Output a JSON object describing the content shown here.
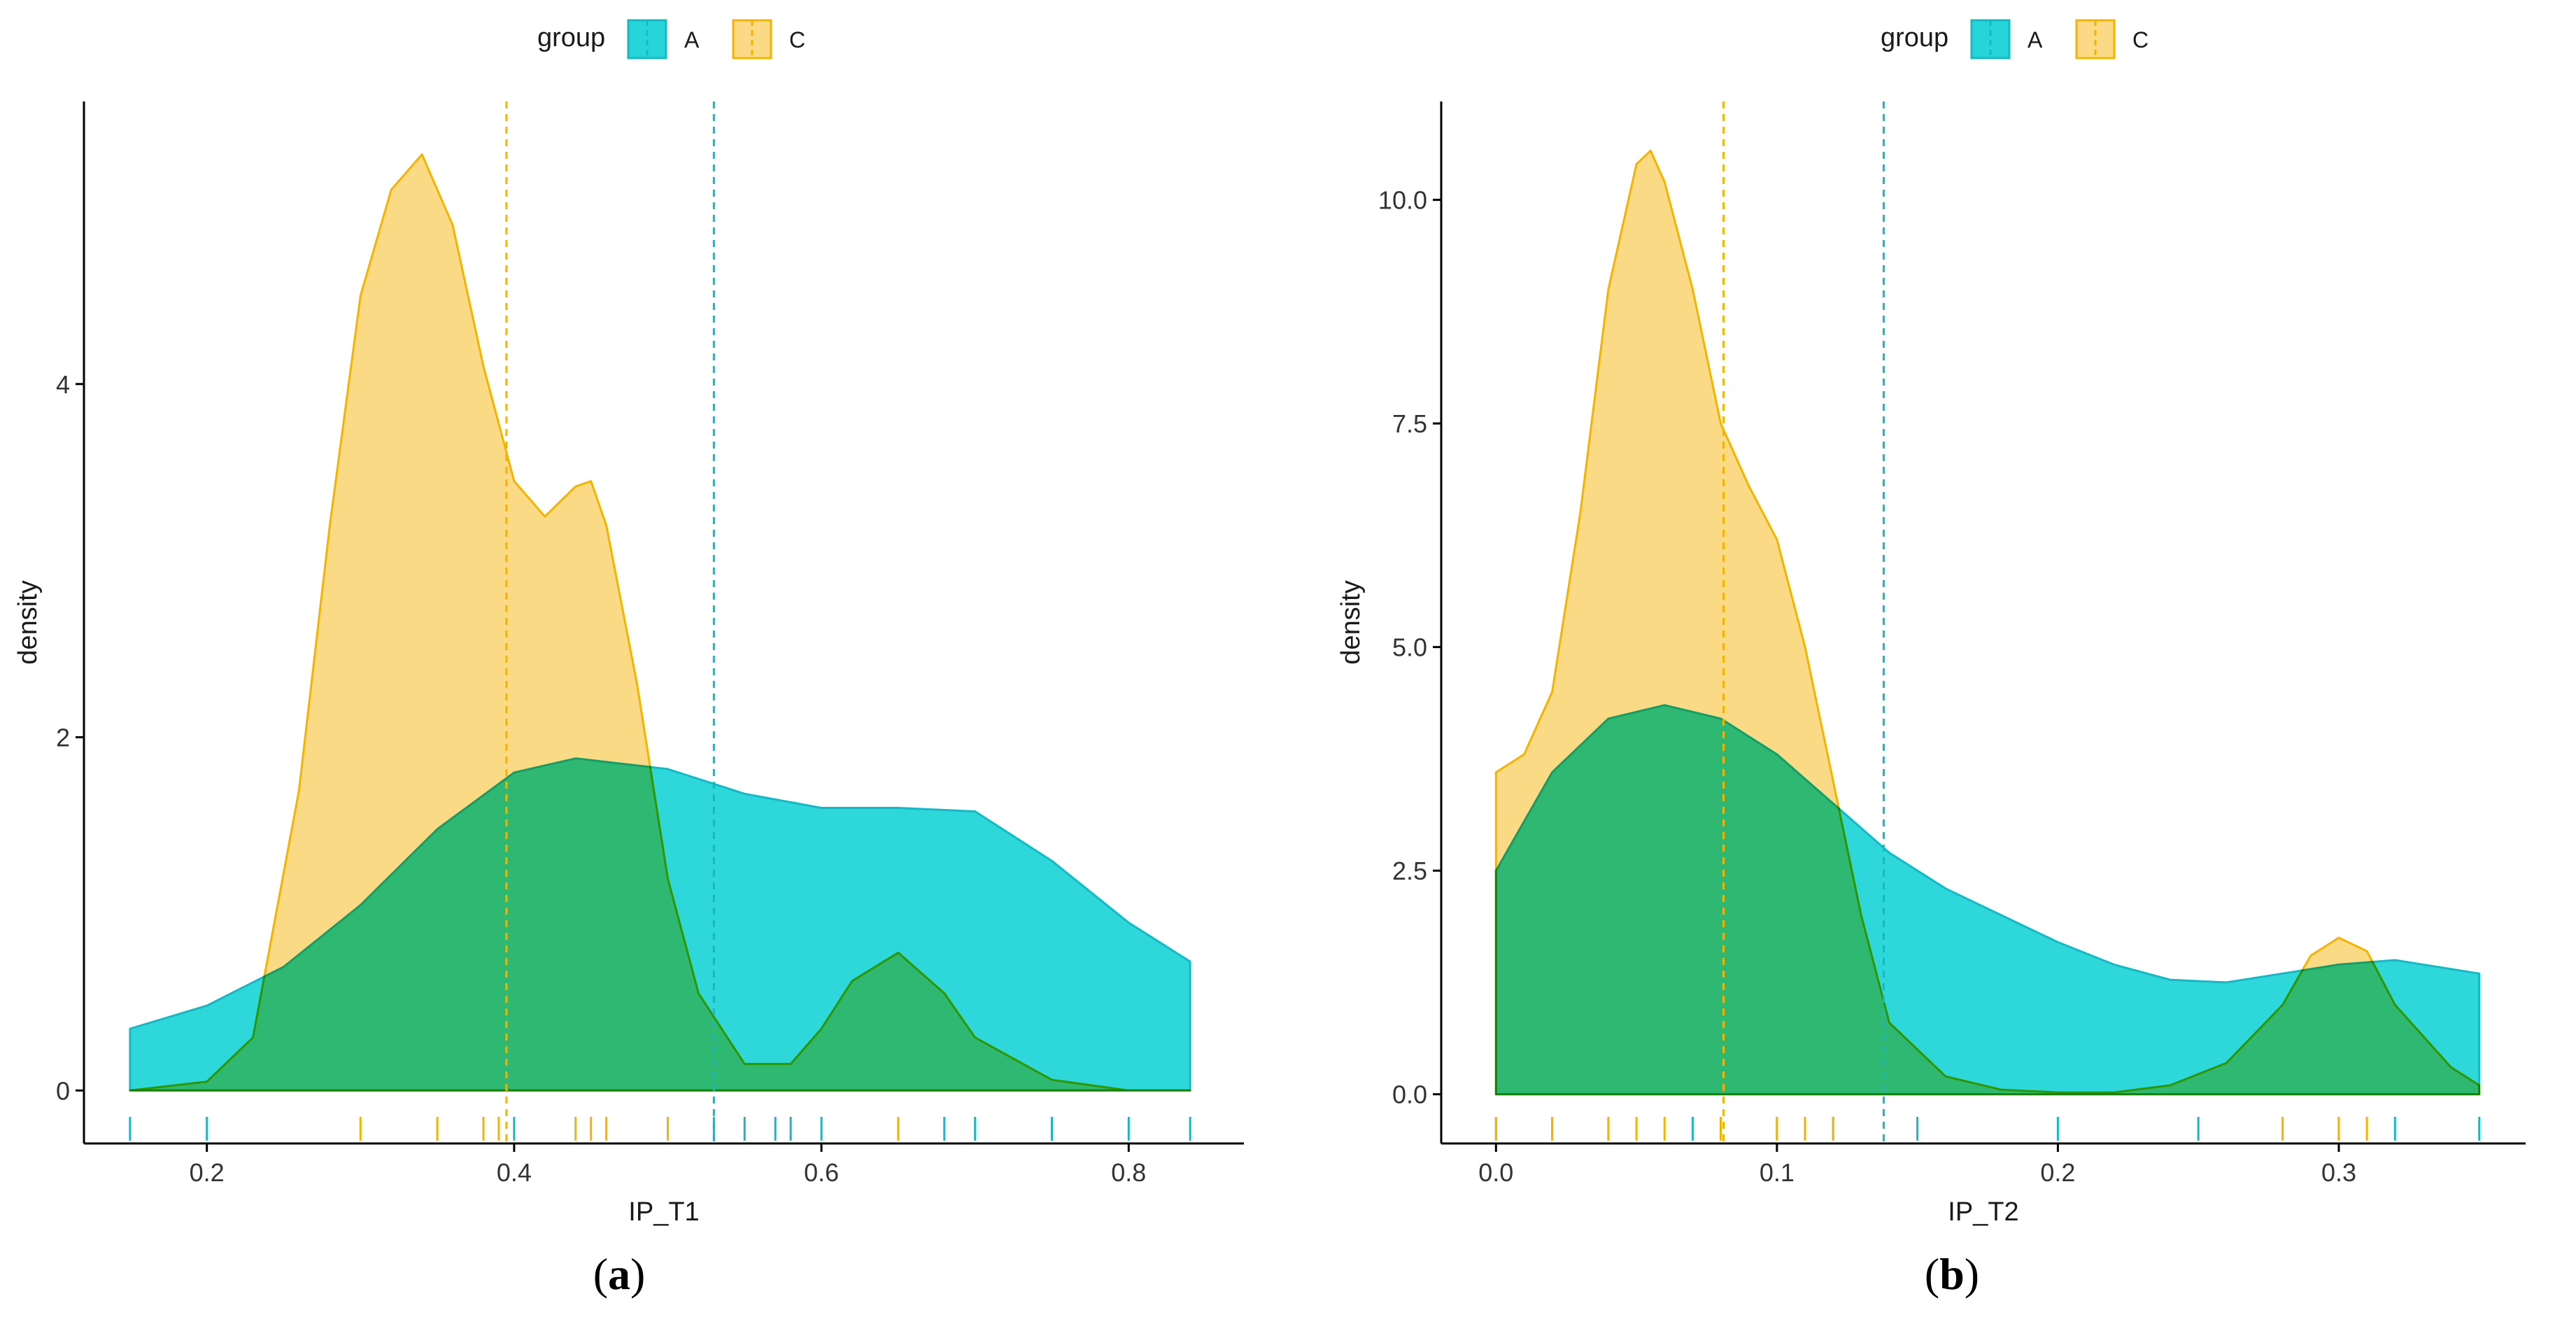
{
  "colors": {
    "A_fill": "#00CED1",
    "A_line": "#17B7C3",
    "C_fill": "#F9D36E",
    "C_line": "#F5B300",
    "overlap": "#A7C56B"
  },
  "chart_data": [
    {
      "type": "density",
      "panel_label": "a",
      "xlabel": "IP_T1",
      "ylabel": "density",
      "xlim": [
        0.12,
        0.875
      ],
      "ylim": [
        -0.3,
        5.6
      ],
      "xticks": [
        0.2,
        0.4,
        0.6,
        0.8
      ],
      "xtick_labels": [
        "0.2",
        "0.4",
        "0.6",
        "0.8"
      ],
      "yticks": [
        0,
        2,
        4
      ],
      "ytick_labels": [
        "0",
        "2",
        "4"
      ],
      "legend": {
        "title": "group",
        "entries": [
          "A",
          "C"
        ],
        "position": "top"
      },
      "series": [
        {
          "name": "A",
          "mean": 0.53,
          "x": [
            0.15,
            0.2,
            0.25,
            0.3,
            0.35,
            0.4,
            0.44,
            0.5,
            0.55,
            0.6,
            0.65,
            0.7,
            0.75,
            0.8,
            0.84
          ],
          "y": [
            0.35,
            0.48,
            0.7,
            1.05,
            1.48,
            1.8,
            1.88,
            1.82,
            1.68,
            1.6,
            1.6,
            1.58,
            1.3,
            0.95,
            0.73
          ],
          "rug": [
            0.15,
            0.2,
            0.4,
            0.53,
            0.55,
            0.57,
            0.58,
            0.6,
            0.68,
            0.7,
            0.75,
            0.8,
            0.84
          ]
        },
        {
          "name": "C",
          "mean": 0.395,
          "x": [
            0.15,
            0.2,
            0.23,
            0.26,
            0.28,
            0.3,
            0.32,
            0.34,
            0.36,
            0.38,
            0.4,
            0.42,
            0.44,
            0.45,
            0.46,
            0.48,
            0.5,
            0.52,
            0.55,
            0.58,
            0.6,
            0.62,
            0.65,
            0.68,
            0.7,
            0.75,
            0.8,
            0.84
          ],
          "y": [
            0.0,
            0.05,
            0.3,
            1.7,
            3.2,
            4.5,
            5.1,
            5.3,
            4.9,
            4.1,
            3.45,
            3.25,
            3.42,
            3.45,
            3.2,
            2.3,
            1.2,
            0.55,
            0.15,
            0.15,
            0.35,
            0.62,
            0.78,
            0.55,
            0.3,
            0.06,
            0.0,
            0.0
          ],
          "rug": [
            0.3,
            0.35,
            0.38,
            0.39,
            0.44,
            0.45,
            0.46,
            0.5,
            0.65
          ]
        }
      ]
    },
    {
      "type": "density",
      "panel_label": "b",
      "xlabel": "IP_T2",
      "ylabel": "density",
      "xlim": [
        -0.0195,
        0.3665
      ],
      "ylim": [
        -0.55,
        11.1
      ],
      "xticks": [
        0.0,
        0.1,
        0.2,
        0.3
      ],
      "xtick_labels": [
        "0.0",
        "0.1",
        "0.2",
        "0.3"
      ],
      "yticks": [
        0.0,
        2.5,
        5.0,
        7.5,
        10.0
      ],
      "ytick_labels": [
        "0.0",
        "2.5",
        "5.0",
        "7.5",
        "10.0"
      ],
      "legend": {
        "title": "group",
        "entries": [
          "A",
          "C"
        ],
        "position": "top"
      },
      "series": [
        {
          "name": "A",
          "mean": 0.138,
          "x": [
            0.0,
            0.02,
            0.04,
            0.06,
            0.08,
            0.1,
            0.12,
            0.14,
            0.16,
            0.18,
            0.2,
            0.22,
            0.24,
            0.26,
            0.28,
            0.3,
            0.32,
            0.35
          ],
          "y": [
            2.5,
            3.6,
            4.2,
            4.35,
            4.2,
            3.8,
            3.25,
            2.7,
            2.3,
            2.0,
            1.7,
            1.45,
            1.28,
            1.25,
            1.35,
            1.45,
            1.5,
            1.35
          ],
          "rug": [
            0.0,
            0.02,
            0.04,
            0.07,
            0.08,
            0.1,
            0.12,
            0.15,
            0.2,
            0.25,
            0.3,
            0.32,
            0.35
          ]
        },
        {
          "name": "C",
          "mean": 0.081,
          "x": [
            0.0,
            0.01,
            0.02,
            0.03,
            0.04,
            0.05,
            0.055,
            0.06,
            0.07,
            0.08,
            0.09,
            0.1,
            0.11,
            0.12,
            0.13,
            0.14,
            0.16,
            0.18,
            0.2,
            0.22,
            0.24,
            0.26,
            0.28,
            0.29,
            0.3,
            0.31,
            0.32,
            0.34,
            0.35
          ],
          "y": [
            3.6,
            3.8,
            4.5,
            6.5,
            9.0,
            10.4,
            10.55,
            10.2,
            9.0,
            7.5,
            6.8,
            6.2,
            5.0,
            3.5,
            2.0,
            0.8,
            0.2,
            0.05,
            0.02,
            0.02,
            0.1,
            0.35,
            1.0,
            1.55,
            1.75,
            1.6,
            1.0,
            0.3,
            0.1
          ],
          "rug": [
            0.0,
            0.02,
            0.04,
            0.05,
            0.06,
            0.08,
            0.1,
            0.11,
            0.12,
            0.28,
            0.3,
            0.31
          ]
        }
      ]
    }
  ]
}
